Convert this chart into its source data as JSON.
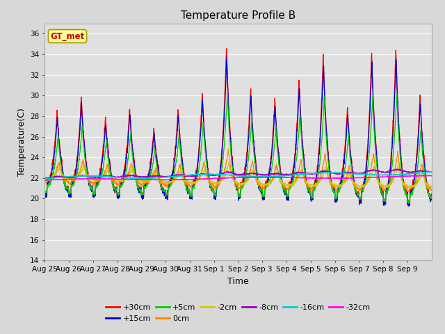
{
  "title": "Temperature Profile B",
  "xlabel": "Time",
  "ylabel": "Temperature(C)",
  "ylim": [
    14,
    37
  ],
  "x_tick_labels": [
    "Aug 25",
    "Aug 26",
    "Aug 27",
    "Aug 28",
    "Aug 29",
    "Aug 30",
    "Aug 31",
    "Sep 1",
    "Sep 2",
    "Sep 3",
    "Sep 4",
    "Sep 5",
    "Sep 6",
    "Sep 7",
    "Sep 8",
    "Sep 9"
  ],
  "series_labels": [
    "+30cm",
    "+15cm",
    "+5cm",
    "0cm",
    "-2cm",
    "-8cm",
    "-16cm",
    "-32cm"
  ],
  "series_colors": [
    "#ff0000",
    "#0000cc",
    "#00cc00",
    "#ff8800",
    "#cccc00",
    "#9900bb",
    "#00cccc",
    "#ff00ff"
  ],
  "gt_met_label": "GT_met",
  "gt_met_color": "#cc0000",
  "gt_met_bg": "#ffff99",
  "fig_bg": "#d8d8d8",
  "plot_bg": "#e0e0e0",
  "title_fontsize": 11,
  "legend_fontsize": 8,
  "axis_label_fontsize": 9,
  "tick_fontsize": 7.5
}
